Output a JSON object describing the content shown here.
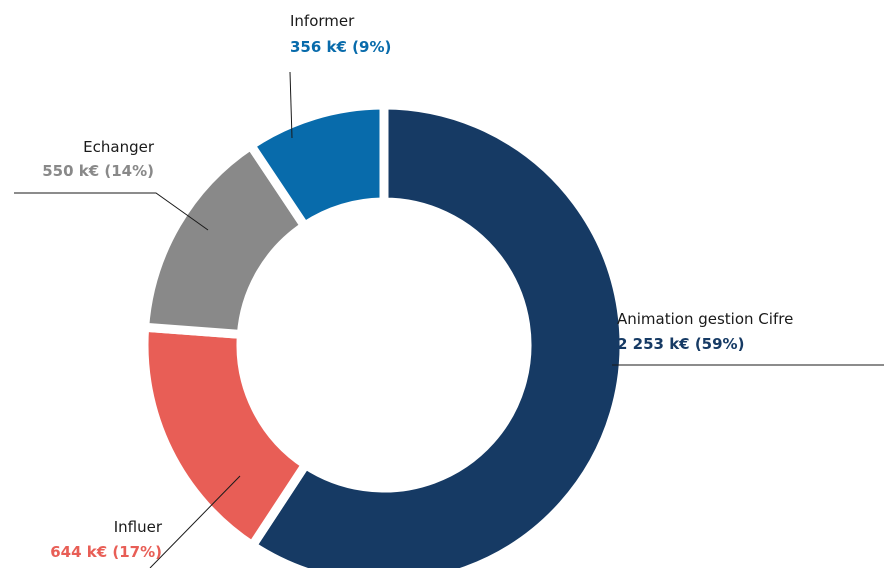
{
  "chart_data": {
    "type": "donut",
    "categories": [
      "Animation gestion Cifre",
      "Influer",
      "Echanger",
      "Informer"
    ],
    "values": [
      2253,
      644,
      550,
      356
    ],
    "value_labels": [
      "2 253 k€ (59%)",
      "644 k€ (17%)",
      "550 k€ (14%)",
      "356 k€ (9%)"
    ],
    "colors": [
      "#163a64",
      "#e85e56",
      "#898989",
      "#086bab"
    ]
  }
}
